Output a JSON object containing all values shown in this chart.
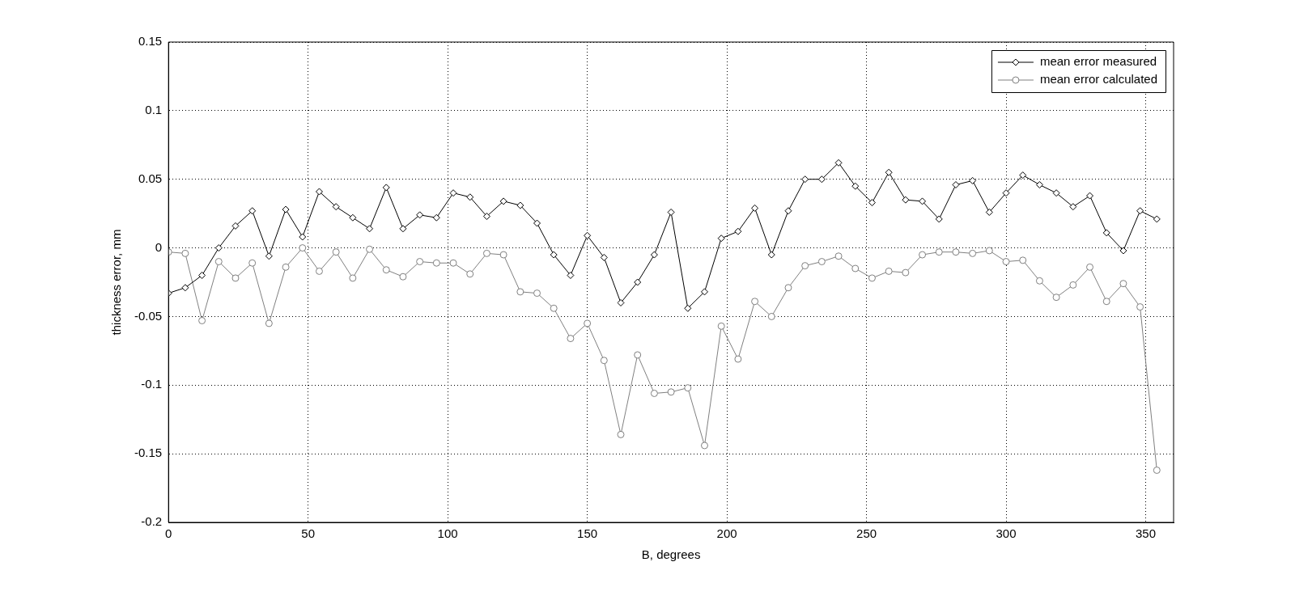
{
  "chart_data": {
    "type": "line",
    "xlabel": "B, degrees",
    "ylabel": "thickness error, mm",
    "xlim": [
      0,
      360
    ],
    "xticks": [
      0,
      50,
      100,
      150,
      200,
      250,
      300,
      350
    ],
    "ylim": [
      -0.2,
      0.15
    ],
    "yticks": [
      -0.2,
      -0.15,
      -0.1,
      -0.05,
      0,
      0.05,
      0.1,
      0.15
    ],
    "grid": true,
    "legend": "top right",
    "x": [
      0,
      6,
      12,
      18,
      24,
      30,
      36,
      42,
      48,
      54,
      60,
      66,
      72,
      78,
      84,
      90,
      96,
      102,
      108,
      114,
      120,
      126,
      132,
      138,
      144,
      150,
      156,
      162,
      168,
      174,
      180,
      186,
      192,
      198,
      204,
      210,
      216,
      222,
      228,
      234,
      240,
      246,
      252,
      258,
      264,
      270,
      276,
      282,
      288,
      294,
      300,
      306,
      312,
      318,
      324,
      330,
      336,
      342,
      348,
      354
    ],
    "series": [
      {
        "name": "mean error measured",
        "color": "#000000",
        "marker": "diamond",
        "values": [
          -0.033,
          -0.029,
          -0.02,
          0.0,
          0.016,
          0.027,
          -0.006,
          0.028,
          0.008,
          0.041,
          0.03,
          0.022,
          0.014,
          0.044,
          0.014,
          0.024,
          0.022,
          0.04,
          0.037,
          0.023,
          0.034,
          0.031,
          0.018,
          -0.005,
          -0.02,
          0.009,
          -0.007,
          -0.04,
          -0.025,
          -0.005,
          0.026,
          -0.044,
          -0.032,
          0.007,
          0.012,
          0.029,
          -0.005,
          0.027,
          0.05,
          0.05,
          0.062,
          0.045,
          0.033,
          0.055,
          0.035,
          0.034,
          0.021,
          0.046,
          0.049,
          0.026,
          0.04,
          0.053,
          0.046,
          0.04,
          0.03,
          0.038,
          0.011,
          -0.002,
          0.027,
          0.021
        ]
      },
      {
        "name": "mean error calculated",
        "color": "#808080",
        "marker": "circle",
        "values": [
          -0.003,
          -0.004,
          -0.053,
          -0.01,
          -0.022,
          -0.011,
          -0.055,
          -0.014,
          0.0,
          -0.017,
          -0.003,
          -0.022,
          -0.001,
          -0.016,
          -0.021,
          -0.01,
          -0.011,
          -0.011,
          -0.019,
          -0.004,
          -0.005,
          -0.032,
          -0.033,
          -0.044,
          -0.066,
          -0.055,
          -0.082,
          -0.136,
          -0.078,
          -0.106,
          -0.105,
          -0.102,
          -0.144,
          -0.057,
          -0.081,
          -0.039,
          -0.05,
          -0.029,
          -0.013,
          -0.01,
          -0.006,
          -0.015,
          -0.022,
          -0.017,
          -0.018,
          -0.005,
          -0.003,
          -0.003,
          -0.004,
          -0.002,
          -0.01,
          -0.009,
          -0.024,
          -0.036,
          -0.027,
          -0.014,
          -0.039,
          -0.026,
          -0.043,
          -0.162
        ]
      }
    ]
  }
}
